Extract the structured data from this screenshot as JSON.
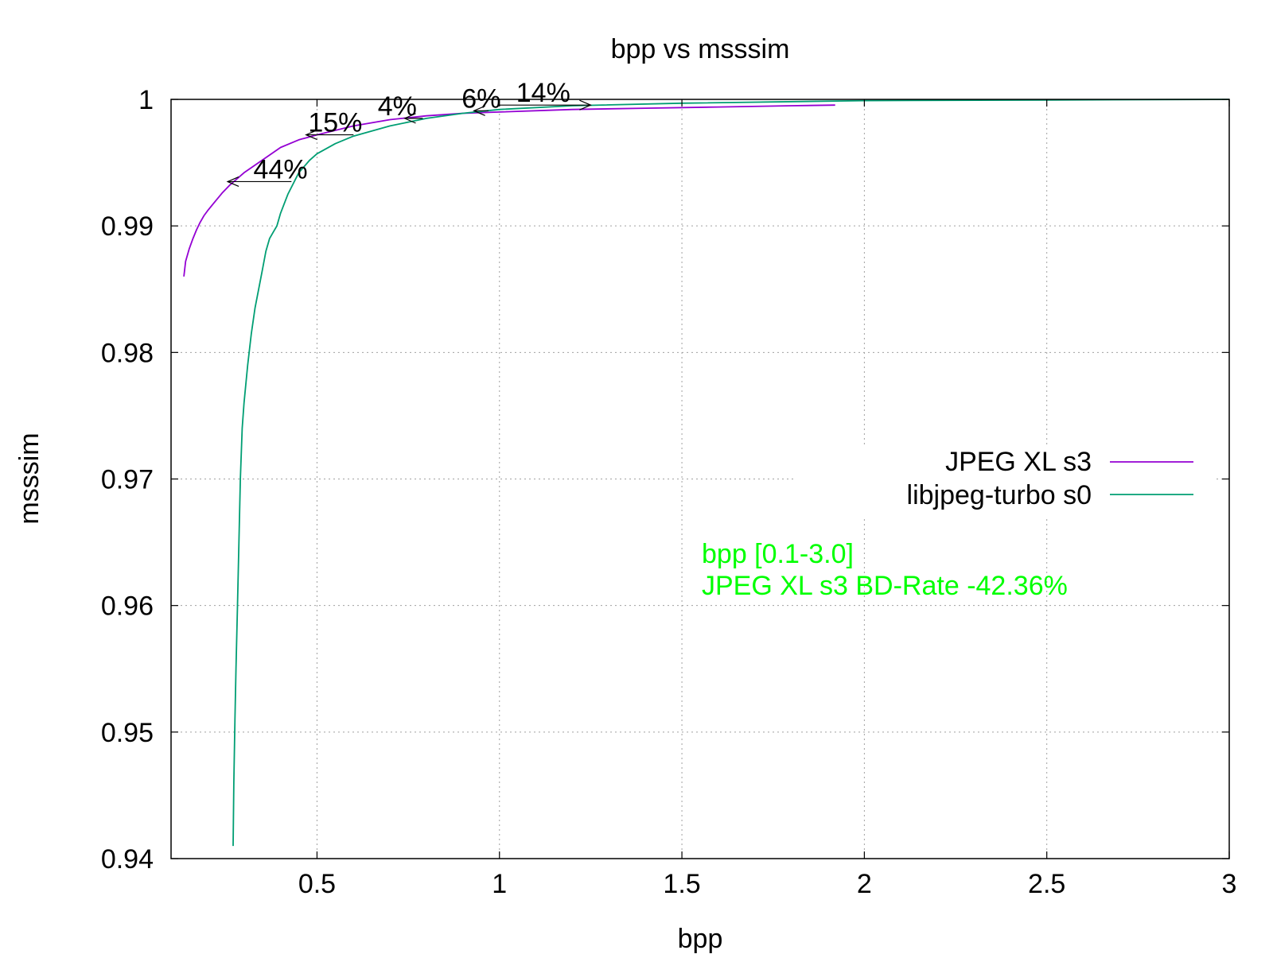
{
  "chart_data": {
    "type": "line",
    "title": "bpp vs msssim",
    "xlabel": "bpp",
    "ylabel": "msssim",
    "xlim": [
      0.1,
      3.0
    ],
    "ylim": [
      0.94,
      1.0
    ],
    "x_ticks": [
      {
        "value": 0.5,
        "label": "0.5"
      },
      {
        "value": 1.0,
        "label": "1"
      },
      {
        "value": 1.5,
        "label": "1.5"
      },
      {
        "value": 2.0,
        "label": "2"
      },
      {
        "value": 2.5,
        "label": "2.5"
      },
      {
        "value": 3.0,
        "label": "3"
      }
    ],
    "y_ticks": [
      {
        "value": 0.94,
        "label": "0.94"
      },
      {
        "value": 0.95,
        "label": "0.95"
      },
      {
        "value": 0.96,
        "label": "0.96"
      },
      {
        "value": 0.97,
        "label": "0.97"
      },
      {
        "value": 0.98,
        "label": "0.98"
      },
      {
        "value": 0.99,
        "label": "0.99"
      },
      {
        "value": 1.0,
        "label": "1"
      }
    ],
    "grid": true,
    "legend_position": "right",
    "series": [
      {
        "name": "JPEG XL s3",
        "color": "#9400d3",
        "x": [
          0.135,
          0.14,
          0.15,
          0.16,
          0.17,
          0.18,
          0.19,
          0.2,
          0.22,
          0.24,
          0.26,
          0.3,
          0.35,
          0.4,
          0.45,
          0.5,
          0.6,
          0.7,
          0.8,
          0.9,
          1.0,
          1.2,
          1.4,
          1.6,
          1.8,
          1.92
        ],
        "y": [
          0.986,
          0.9872,
          0.9882,
          0.989,
          0.9897,
          0.9903,
          0.9908,
          0.9912,
          0.9919,
          0.9926,
          0.9932,
          0.9942,
          0.9952,
          0.9962,
          0.9968,
          0.9972,
          0.9979,
          0.9984,
          0.9987,
          0.9989,
          0.999,
          0.9992,
          0.9993,
          0.9994,
          0.9995,
          0.99955
        ]
      },
      {
        "name": "libjpeg-turbo s0",
        "color": "#009e73",
        "x": [
          0.27,
          0.272,
          0.275,
          0.278,
          0.282,
          0.286,
          0.29,
          0.295,
          0.3,
          0.305,
          0.31,
          0.32,
          0.33,
          0.34,
          0.35,
          0.36,
          0.37,
          0.38,
          0.39,
          0.4,
          0.42,
          0.45,
          0.48,
          0.5,
          0.55,
          0.6,
          0.7,
          0.8,
          0.9,
          1.0,
          1.2,
          1.5,
          2.0,
          2.5,
          3.0
        ],
        "y": [
          0.941,
          0.946,
          0.951,
          0.955,
          0.96,
          0.965,
          0.97,
          0.974,
          0.976,
          0.9775,
          0.979,
          0.9815,
          0.9835,
          0.985,
          0.9865,
          0.988,
          0.989,
          0.9895,
          0.99,
          0.991,
          0.9925,
          0.9942,
          0.9952,
          0.9957,
          0.9965,
          0.9971,
          0.9979,
          0.9985,
          0.9989,
          0.9992,
          0.9995,
          0.9997,
          0.9999,
          0.99995,
          1.0
        ]
      }
    ],
    "annotations": [
      {
        "label": "44%",
        "x": 0.4,
        "y": 0.9935,
        "arrow_from_x": 0.43,
        "arrow_to_x": 0.255
      },
      {
        "label": "15%",
        "x": 0.55,
        "y": 0.9972,
        "arrow_from_x": 0.6,
        "arrow_to_x": 0.47
      },
      {
        "label": "4%",
        "x": 0.72,
        "y": 0.9985,
        "arrow_from_x": 0.79,
        "arrow_to_x": 0.74
      },
      {
        "label": "6%",
        "x": 0.95,
        "y": 0.9991,
        "arrow_from_x": 0.97,
        "arrow_to_x": 0.93
      },
      {
        "label": "14%",
        "x": 1.12,
        "y": 0.99955,
        "arrow_from_x": 1.0,
        "arrow_to_x": 1.25
      }
    ],
    "text_notes": [
      "bpp [0.1-3.0]",
      "JPEG XL s3 BD-Rate -42.36%"
    ],
    "text_note_color": "#00ff00"
  }
}
